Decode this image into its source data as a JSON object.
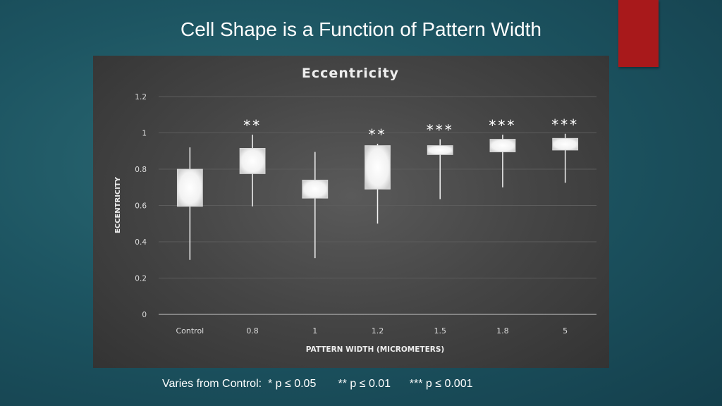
{
  "slide": {
    "title": "Cell Shape is a Function of Pattern Width",
    "footnote": "Varies from Control:  * p ≤ 0.05       ** p ≤ 0.01      *** p ≤ 0.001",
    "accent_color": "#a8191b"
  },
  "chart_data": {
    "type": "box",
    "title": "Eccentricity",
    "xlabel": "PATTERN WIDTH (MICROMETERS)",
    "ylabel": "ECCENTRICITY",
    "ylim": [
      0,
      1.2
    ],
    "yticks": [
      "0",
      "0.2",
      "0.4",
      "0.6",
      "0.8",
      "1",
      "1.2"
    ],
    "categories": [
      "Control",
      "0.8",
      "1",
      "1.2",
      "1.5",
      "1.8",
      "5"
    ],
    "series": [
      {
        "min": 0.3,
        "q1": 0.595,
        "q3": 0.8,
        "max": 0.92,
        "significance": ""
      },
      {
        "min": 0.595,
        "q1": 0.775,
        "q3": 0.915,
        "max": 0.99,
        "significance": "**"
      },
      {
        "min": 0.31,
        "q1": 0.64,
        "q3": 0.74,
        "max": 0.895,
        "significance": ""
      },
      {
        "min": 0.5,
        "q1": 0.69,
        "q3": 0.93,
        "max": 0.94,
        "significance": "**"
      },
      {
        "min": 0.635,
        "q1": 0.88,
        "q3": 0.93,
        "max": 0.965,
        "significance": "***"
      },
      {
        "min": 0.7,
        "q1": 0.895,
        "q3": 0.965,
        "max": 0.99,
        "significance": "***"
      },
      {
        "min": 0.725,
        "q1": 0.905,
        "q3": 0.97,
        "max": 0.995,
        "significance": "***"
      }
    ],
    "grid": true,
    "background": "#464646"
  }
}
